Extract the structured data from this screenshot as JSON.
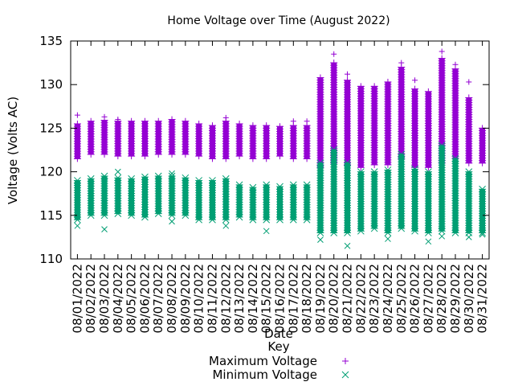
{
  "chart_data": {
    "type": "scatter",
    "title": "Home Voltage over Time (August 2022)",
    "xlabel": "Date",
    "ylabel": "Voltage (Volts AC)",
    "ylim": [
      110,
      135
    ],
    "yticks": [
      110,
      115,
      120,
      125,
      130,
      135
    ],
    "grid": false,
    "legend": {
      "position": "bottom",
      "title": "Key",
      "entries": [
        {
          "name": "Maximum Voltage",
          "marker": "+",
          "color": "#9400d3"
        },
        {
          "name": "Minimum Voltage",
          "marker": "x",
          "color": "#009e73"
        }
      ]
    },
    "categories": [
      "08/01/2022",
      "08/02/2022",
      "08/03/2022",
      "08/04/2022",
      "08/05/2022",
      "08/06/2022",
      "08/07/2022",
      "08/08/2022",
      "08/09/2022",
      "08/10/2022",
      "08/11/2022",
      "08/12/2022",
      "08/13/2022",
      "08/14/2022",
      "08/15/2022",
      "08/16/2022",
      "08/17/2022",
      "08/18/2022",
      "08/19/2022",
      "08/20/2022",
      "08/21/2022",
      "08/22/2022",
      "08/23/2022",
      "08/24/2022",
      "08/25/2022",
      "08/26/2022",
      "08/27/2022",
      "08/28/2022",
      "08/29/2022",
      "08/30/2022",
      "08/31/2022"
    ],
    "series": [
      {
        "name": "Maximum Voltage",
        "color": "#9400d3",
        "marker": "+",
        "low": [
          121.5,
          122.0,
          122.0,
          121.8,
          121.8,
          121.8,
          122.0,
          122.0,
          122.0,
          121.8,
          121.5,
          121.5,
          121.8,
          121.5,
          121.5,
          121.8,
          121.5,
          121.5,
          120.5,
          121.0,
          120.8,
          120.5,
          120.8,
          120.8,
          121.5,
          120.5,
          120.5,
          121.0,
          121.5,
          121.0,
          121.0
        ],
        "high": [
          125.5,
          125.8,
          125.9,
          125.8,
          125.8,
          125.8,
          125.8,
          126.0,
          125.8,
          125.5,
          125.3,
          125.8,
          125.5,
          125.3,
          125.3,
          125.2,
          125.3,
          125.3,
          130.8,
          132.5,
          130.5,
          129.8,
          129.8,
          130.3,
          132.0,
          129.5,
          129.2,
          133.0,
          131.8,
          128.5,
          125.0
        ],
        "outliers": [
          {
            "x": "08/01/2022",
            "y": 126.5
          },
          {
            "x": "08/03/2022",
            "y": 126.3
          },
          {
            "x": "08/04/2022",
            "y": 126.0
          },
          {
            "x": "08/12/2022",
            "y": 126.2
          },
          {
            "x": "08/17/2022",
            "y": 125.8
          },
          {
            "x": "08/18/2022",
            "y": 125.8
          },
          {
            "x": "08/20/2022",
            "y": 133.5
          },
          {
            "x": "08/21/2022",
            "y": 131.2
          },
          {
            "x": "08/25/2022",
            "y": 132.5
          },
          {
            "x": "08/26/2022",
            "y": 130.5
          },
          {
            "x": "08/28/2022",
            "y": 133.8
          },
          {
            "x": "08/29/2022",
            "y": 132.3
          },
          {
            "x": "08/30/2022",
            "y": 130.3
          }
        ]
      },
      {
        "name": "Minimum Voltage",
        "color": "#009e73",
        "marker": "x",
        "low": [
          114.5,
          115.0,
          115.0,
          115.2,
          115.0,
          114.8,
          115.2,
          115.0,
          115.0,
          114.5,
          114.5,
          114.5,
          114.8,
          114.5,
          114.5,
          114.5,
          114.5,
          114.5,
          113.0,
          113.0,
          113.0,
          113.2,
          113.5,
          113.0,
          113.5,
          113.2,
          113.0,
          113.2,
          113.0,
          113.0,
          113.0
        ],
        "high": [
          119.0,
          119.2,
          119.5,
          119.3,
          119.2,
          119.4,
          119.5,
          119.5,
          119.3,
          119.0,
          119.0,
          119.2,
          118.5,
          118.2,
          118.5,
          118.3,
          118.5,
          118.5,
          121.0,
          122.5,
          121.0,
          120.0,
          120.0,
          120.2,
          122.0,
          120.3,
          120.0,
          123.0,
          121.5,
          120.0,
          118.0
        ],
        "outliers": [
          {
            "x": "08/01/2022",
            "y": 113.8
          },
          {
            "x": "08/03/2022",
            "y": 113.4
          },
          {
            "x": "08/04/2022",
            "y": 120.0
          },
          {
            "x": "08/08/2022",
            "y": 114.3
          },
          {
            "x": "08/08/2022",
            "y": 119.8
          },
          {
            "x": "08/12/2022",
            "y": 113.8
          },
          {
            "x": "08/15/2022",
            "y": 113.2
          },
          {
            "x": "08/19/2022",
            "y": 112.2
          },
          {
            "x": "08/21/2022",
            "y": 111.5
          },
          {
            "x": "08/24/2022",
            "y": 112.3
          },
          {
            "x": "08/27/2022",
            "y": 112.0
          },
          {
            "x": "08/28/2022",
            "y": 112.6
          },
          {
            "x": "08/30/2022",
            "y": 112.5
          },
          {
            "x": "08/31/2022",
            "y": 112.8
          }
        ]
      }
    ]
  }
}
